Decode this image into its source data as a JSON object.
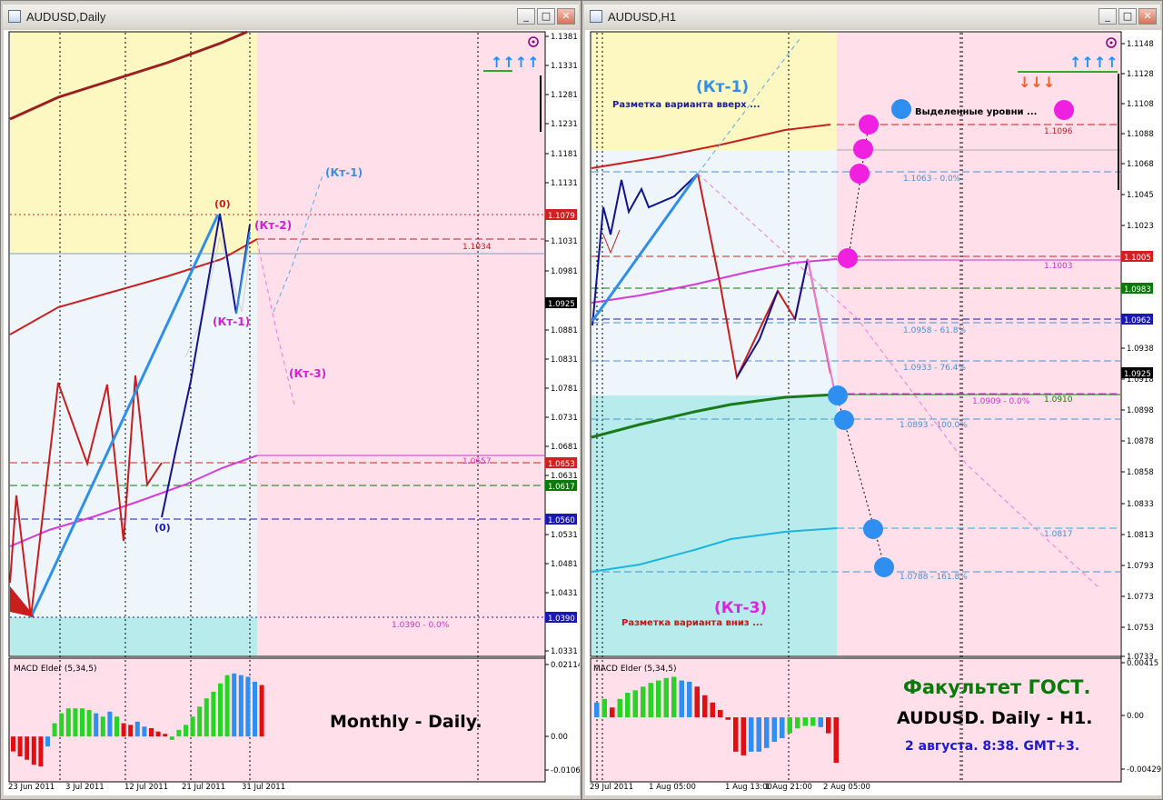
{
  "left_window": {
    "title": "AUDUSD,Daily",
    "price_axis": [
      "1.1381",
      "1.1331",
      "1.1281",
      "1.1231",
      "1.1181",
      "1.1131",
      "1.1031",
      "1.0981",
      "1.0881",
      "1.0831",
      "1.0781",
      "1.0731",
      "1.0681",
      "1.0631",
      "1.0531",
      "1.0481",
      "1.0431",
      "1.0331"
    ],
    "price_tags": [
      {
        "value": "1.1079",
        "color": "#d22020"
      },
      {
        "value": "1.0925",
        "color": "#000000"
      },
      {
        "value": "1.0653",
        "color": "#d22020"
      },
      {
        "value": "1.0617",
        "color": "#0a7a0a"
      },
      {
        "value": "1.0560",
        "color": "#1a1ab0"
      },
      {
        "value": "1.0390",
        "color": "#1a1ab0"
      }
    ],
    "level_labels": {
      "l1034": "1.1034",
      "l0657": "1.0657",
      "l0390": "1.0390 - 0.0%"
    },
    "wave_labels": {
      "zero_top": "(0)",
      "zero_bot": "(0)",
      "kt1_blue": "(Кт-1)",
      "kt2": "(Кт-2)",
      "kt1_mag": "(Кт-1)",
      "kt3": "(Кт-3)"
    },
    "date_axis": [
      "23 Jun 2011",
      "3 Jul 2011",
      "12 Jul 2011",
      "21 Jul 2011",
      "31 Jul 2011"
    ],
    "indicator": {
      "name": "MACD Elder (5,34,5)",
      "axis": [
        "0.02114",
        "0.00",
        "-0.01064"
      ],
      "caption": "Monthly - Daily.",
      "bar_colors": [
        "#e01010",
        "#e01010",
        "#e01010",
        "#e01010",
        "#e01010",
        "#2f8ff0",
        "#28d428",
        "#28d428",
        "#28d428",
        "#28d428",
        "#28d428",
        "#28d428",
        "#2f8ff0",
        "#28d428",
        "#2f8ff0",
        "#28d428",
        "#e01010",
        "#e01010",
        "#2f8ff0",
        "#2f8ff0",
        "#e01010",
        "#e01010",
        "#e01010",
        "#28d428",
        "#28d428",
        "#28d428",
        "#28d428",
        "#28d428",
        "#28d428",
        "#28d428",
        "#28d428",
        "#28d428",
        "#2f8ff0",
        "#2f8ff0",
        "#2f8ff0",
        "#2f8ff0",
        "#e01010"
      ],
      "bar_values": [
        -0.0045,
        -0.006,
        -0.007,
        -0.0085,
        -0.009,
        -0.003,
        0.004,
        0.007,
        0.0085,
        0.0085,
        0.0085,
        0.008,
        0.007,
        0.006,
        0.0075,
        0.006,
        0.004,
        0.0035,
        0.0045,
        0.003,
        0.0025,
        0.0015,
        0.0008,
        -0.001,
        0.002,
        0.0035,
        0.006,
        0.009,
        0.0115,
        0.0135,
        0.016,
        0.0185,
        0.019,
        0.0185,
        0.018,
        0.0165,
        0.0155
      ]
    }
  },
  "right_window": {
    "title": "AUDUSD,H1",
    "price_axis": [
      "1.1148",
      "1.1128",
      "1.1108",
      "1.1088",
      "1.1068",
      "1.1045",
      "1.1023",
      "1.0938",
      "1.0918",
      "1.0898",
      "1.0878",
      "1.0858",
      "1.0833",
      "1.0813",
      "1.0793",
      "1.0773",
      "1.0753",
      "1.0733"
    ],
    "price_tags": [
      {
        "value": "1.1005",
        "color": "#d22020"
      },
      {
        "value": "1.0983",
        "color": "#0a7a0a"
      },
      {
        "value": "1.0962",
        "color": "#1a1ab0"
      },
      {
        "value": "1.0925",
        "color": "#000000"
      }
    ],
    "level_labels": {
      "l1096": "1.1096",
      "l1063": "1.1063 - 0.0%",
      "l1003": "1.1003",
      "l0958": "1.0958 - 61.8%",
      "l0933": "1.0933 - 76.4%",
      "l0909": "1.0909 - 0.0%",
      "l0910": "1.0910",
      "l0893": "1.0893 - 100.0%",
      "l0817": "1.0817",
      "l0788": "1.0788 - 161.8%"
    },
    "annotations": {
      "kt1": "(Кт-1)",
      "up_text": "Разметка варианта вверх ...",
      "levels_text": "Выделенные уровни ...",
      "kt3": "(Кт-3)",
      "down_text": "Разметка варианта вниз ..."
    },
    "date_axis": [
      "29 Jul 2011",
      "1 Aug 05:00",
      "1 Aug 13:00",
      "1 Aug 21:00",
      "2 Aug 05:00"
    ],
    "indicator": {
      "name": "MACD Elder (5,34,5)",
      "axis": [
        "0.00415",
        "0.00",
        "-0.00429"
      ],
      "caption1": "Факультет ГОСТ.",
      "caption2": "AUDUSD. Daily - H1.",
      "caption3": "2 августа. 8:38. GMT+3.",
      "bar_colors": [
        "#2f8ff0",
        "#28d428",
        "#e01010",
        "#28d428",
        "#28d428",
        "#28d428",
        "#28d428",
        "#28d428",
        "#28d428",
        "#28d428",
        "#28d428",
        "#2f8ff0",
        "#2f8ff0",
        "#e01010",
        "#e01010",
        "#e01010",
        "#e01010",
        "#e01010",
        "#e01010",
        "#e01010",
        "#2f8ff0",
        "#2f8ff0",
        "#2f8ff0",
        "#2f8ff0",
        "#2f8ff0",
        "#28d428",
        "#28d428",
        "#28d428",
        "#28d428",
        "#2f8ff0",
        "#e01010",
        "#e01010"
      ],
      "bar_values": [
        0.0012,
        0.0015,
        0.0008,
        0.0015,
        0.002,
        0.0022,
        0.0025,
        0.0028,
        0.003,
        0.0032,
        0.0033,
        0.003,
        0.0029,
        0.0025,
        0.0018,
        0.0012,
        0.0006,
        -0.0002,
        -0.0028,
        -0.0031,
        -0.0028,
        -0.0028,
        -0.0025,
        -0.002,
        -0.0017,
        -0.0013,
        -0.0009,
        -0.0007,
        -0.0007,
        -0.0008,
        -0.0013,
        -0.0037
      ]
    }
  },
  "arrow_glyphs": {
    "up": "↑↑↑↑",
    "down": "↓↓↓"
  }
}
